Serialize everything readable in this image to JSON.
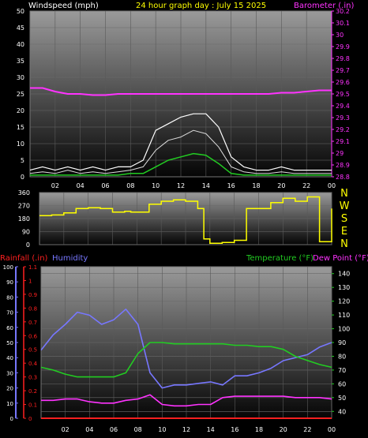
{
  "header": {
    "left": "Windspeed (mph)",
    "center": "24 hour graph day : July 15 2025",
    "right": "Barometer (.in)"
  },
  "colors": {
    "background": "#000000",
    "windspeed_label": "#ffffff",
    "title": "#ffff00",
    "barometer": "#ff33ff",
    "wind_direction": "#ffff00",
    "rainfall": "#ff2020",
    "humidity": "#7777ff",
    "temperature": "#22cc22",
    "dewpoint": "#ff33ff"
  },
  "legend": {
    "rainfall": "Rainfall (.in)",
    "humidity": "Humidity",
    "temperature": "Temperature (°F)",
    "dewpoint": "Dew Point (°F)"
  },
  "compass": [
    "N",
    "W",
    "S",
    "E",
    "N"
  ],
  "chart_data": [
    {
      "type": "line",
      "title": "Windspeed (mph)",
      "x_ticks": [
        "02",
        "04",
        "06",
        "08",
        "10",
        "12",
        "14",
        "16",
        "18",
        "20",
        "22",
        "00"
      ],
      "y_left_ticks": [
        "0",
        "5",
        "10",
        "15",
        "20",
        "25",
        "30",
        "35",
        "40",
        "45",
        "50"
      ],
      "y_left_range": [
        0,
        50
      ],
      "y_right_ticks": [
        "28.8",
        "28.9",
        "29",
        "29.1",
        "29.2",
        "29.3",
        "29.4",
        "29.5",
        "29.6",
        "29.7",
        "29.8",
        "29.9",
        "30",
        "30.1",
        "30.2"
      ],
      "y_right_range": [
        28.8,
        30.2
      ],
      "series": [
        {
          "name": "Windspeed (mph)",
          "x": [
            0,
            1,
            2,
            3,
            4,
            5,
            6,
            7,
            8,
            9,
            10,
            11,
            12,
            13,
            14,
            15,
            16,
            17,
            18,
            19,
            20,
            21,
            22,
            23,
            24
          ],
          "y": [
            1,
            1.5,
            1,
            2,
            1,
            1.5,
            1,
            1.5,
            2,
            3,
            8,
            11,
            12,
            14,
            13,
            9,
            3,
            1.5,
            1,
            1,
            1.5,
            1,
            1,
            1,
            1
          ]
        },
        {
          "name": "Wind gust",
          "x": [
            0,
            1,
            2,
            3,
            4,
            5,
            6,
            7,
            8,
            9,
            10,
            11,
            12,
            13,
            14,
            15,
            16,
            17,
            18,
            19,
            20,
            21,
            22,
            23,
            24
          ],
          "y": [
            2,
            3,
            2,
            3,
            2,
            3,
            2,
            3,
            3,
            5,
            14,
            16,
            18,
            19,
            19,
            15,
            6,
            3,
            2,
            2,
            3,
            2,
            2,
            2,
            2
          ]
        },
        {
          "name": "Average windspeed",
          "x": [
            0,
            1,
            2,
            3,
            4,
            5,
            6,
            7,
            8,
            9,
            10,
            11,
            12,
            13,
            14,
            15,
            16,
            17,
            18,
            19,
            20,
            21,
            22,
            23,
            24
          ],
          "y": [
            0.5,
            0.5,
            0.5,
            0.5,
            0.5,
            0.5,
            0.5,
            0.5,
            1,
            1,
            3,
            5,
            6,
            7,
            6.5,
            4,
            1,
            0.5,
            0.5,
            0.5,
            0.5,
            0.5,
            0.5,
            0.5,
            0.5
          ]
        },
        {
          "name": "Barometer (.in)",
          "x": [
            0,
            1,
            2,
            3,
            4,
            5,
            6,
            7,
            8,
            9,
            10,
            11,
            12,
            13,
            14,
            15,
            16,
            17,
            18,
            19,
            20,
            21,
            22,
            23,
            24
          ],
          "y": [
            29.55,
            29.55,
            29.52,
            29.5,
            29.5,
            29.49,
            29.49,
            29.5,
            29.5,
            29.5,
            29.5,
            29.5,
            29.5,
            29.5,
            29.5,
            29.5,
            29.5,
            29.5,
            29.5,
            29.5,
            29.51,
            29.51,
            29.52,
            29.53,
            29.53
          ]
        }
      ]
    },
    {
      "type": "line",
      "title": "Wind direction",
      "x_ticks": [
        "02",
        "04",
        "06",
        "08",
        "10",
        "12",
        "14",
        "16",
        "18",
        "20",
        "22",
        "00"
      ],
      "y_ticks": [
        "0",
        "90",
        "180",
        "270",
        "360"
      ],
      "y_range": [
        0,
        360
      ],
      "series": [
        {
          "name": "Wind direction",
          "x": [
            0,
            1,
            2,
            3,
            4,
            5,
            6,
            7,
            7.5,
            8,
            9,
            10,
            11,
            12,
            13,
            13.5,
            14,
            15,
            16,
            17,
            18,
            19,
            20,
            21,
            22,
            22.5,
            23,
            24
          ],
          "y": [
            200,
            205,
            220,
            250,
            255,
            250,
            225,
            230,
            225,
            225,
            280,
            300,
            310,
            300,
            250,
            40,
            10,
            15,
            30,
            250,
            250,
            290,
            320,
            300,
            330,
            330,
            20,
            250
          ]
        }
      ]
    },
    {
      "type": "line",
      "title": "Humidity, Temperature, Dew Point, Rainfall",
      "x_ticks": [
        "02",
        "04",
        "06",
        "08",
        "10",
        "12",
        "14",
        "16",
        "18",
        "20",
        "22",
        "00"
      ],
      "y_left_outer_ticks": [
        "0",
        "10",
        "20",
        "30",
        "40",
        "50",
        "60",
        "70",
        "80",
        "90",
        "100"
      ],
      "y_left_outer_range": [
        0,
        100
      ],
      "y_left_inner_ticks": [
        "0",
        "0.1",
        "0.2",
        "0.3",
        "0.4",
        "0.5",
        "0.6",
        "0.7",
        "0.8",
        "0.9",
        "1",
        "1.1"
      ],
      "y_left_inner_range": [
        0,
        1.1
      ],
      "y_right_ticks": [
        "40",
        "50",
        "60",
        "70",
        "80",
        "90",
        "100",
        "110",
        "120",
        "130",
        "140"
      ],
      "y_right_range": [
        35,
        145
      ],
      "series": [
        {
          "name": "Humidity",
          "x": [
            0,
            1,
            2,
            3,
            4,
            5,
            6,
            7,
            8,
            9,
            10,
            11,
            12,
            13,
            14,
            15,
            16,
            17,
            18,
            19,
            20,
            21,
            22,
            23,
            24
          ],
          "y": [
            45,
            55,
            62,
            70,
            68,
            62,
            65,
            72,
            62,
            30,
            20,
            22,
            22,
            23,
            24,
            22,
            28,
            28,
            30,
            33,
            38,
            40,
            42,
            47,
            50
          ]
        },
        {
          "name": "Temperature (°F)",
          "x": [
            0,
            1,
            2,
            3,
            4,
            5,
            6,
            7,
            8,
            9,
            10,
            11,
            12,
            13,
            14,
            15,
            16,
            17,
            18,
            19,
            20,
            21,
            22,
            23,
            24
          ],
          "y": [
            72,
            70,
            67,
            65,
            65,
            65,
            65,
            68,
            82,
            90,
            90,
            89,
            89,
            89,
            89,
            89,
            88,
            88,
            87,
            87,
            85,
            80,
            77,
            74,
            72
          ]
        },
        {
          "name": "Dew Point (°F)",
          "x": [
            0,
            1,
            2,
            3,
            4,
            5,
            6,
            7,
            8,
            9,
            10,
            11,
            12,
            13,
            14,
            15,
            16,
            17,
            18,
            19,
            20,
            21,
            22,
            23,
            24
          ],
          "y": [
            48,
            48,
            49,
            49,
            47,
            46,
            46,
            48,
            49,
            52,
            45,
            44,
            44,
            45,
            45,
            50,
            51,
            51,
            51,
            51,
            51,
            50,
            50,
            50,
            49
          ]
        },
        {
          "name": "Rainfall (.in)",
          "x": [
            0,
            24
          ],
          "y": [
            0,
            0
          ]
        }
      ]
    }
  ]
}
